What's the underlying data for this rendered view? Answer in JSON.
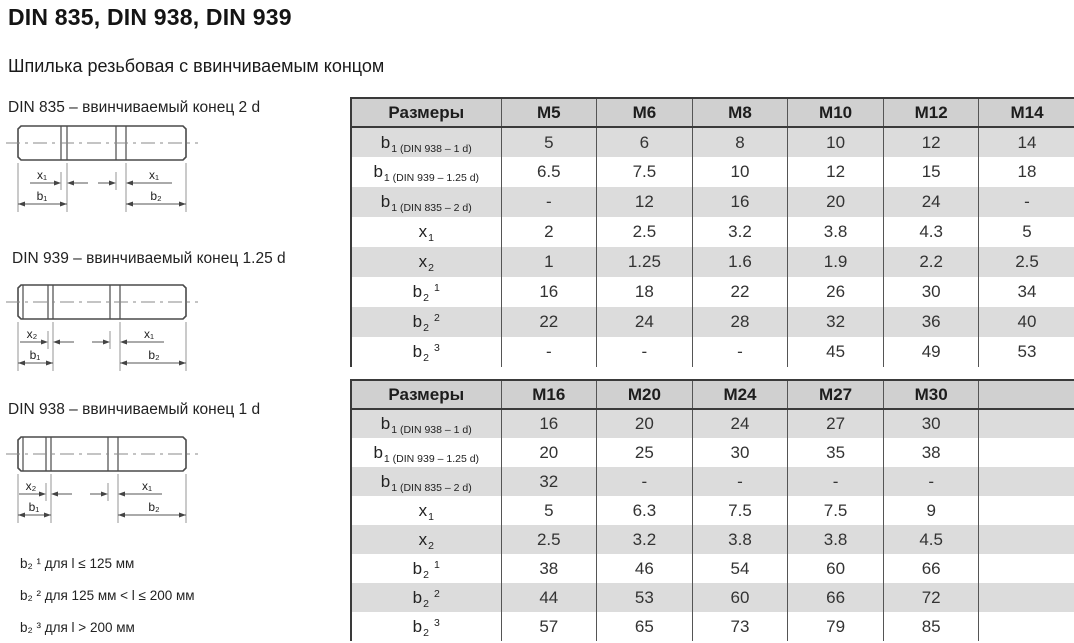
{
  "page": {
    "title": "DIN 835, DIN 938, DIN 939",
    "subtitle": "Шпилька резьбовая с ввинчиваемым концом"
  },
  "drawings": [
    {
      "caption": "DIN 835 – ввинчиваемый конец 2 d",
      "x_left": "x₁",
      "x_right": "x₁",
      "b_left": "b₁",
      "b_right": "b₂"
    },
    {
      "caption": "DIN 939 – ввинчиваемый конец 1.25 d",
      "x_left": "x₂",
      "x_right": "x₁",
      "b_left": "b₁",
      "b_right": "b₂"
    },
    {
      "caption": "DIN 938 – ввинчиваемый конец 1 d",
      "x_left": "x₂",
      "x_right": "x₁",
      "b_left": "b₁",
      "b_right": "b₂"
    }
  ],
  "footnotes": [
    "b₂ ¹ для l ≤ 125 мм",
    "b₂ ² для 125 мм < l ≤ 200 мм",
    "b₂ ³ для l > 200 мм"
  ],
  "tables": [
    {
      "header": [
        "Размеры",
        "M5",
        "M6",
        "M8",
        "M10",
        "M12",
        "M14"
      ],
      "rows": [
        {
          "base": "b",
          "sub": "1 (DIN 938 – 1 d)",
          "sup": "",
          "values": [
            "5",
            "6",
            "8",
            "10",
            "12",
            "14"
          ]
        },
        {
          "base": "b",
          "sub": "1 (DIN 939 – 1.25 d)",
          "sup": "",
          "values": [
            "6.5",
            "7.5",
            "10",
            "12",
            "15",
            "18"
          ]
        },
        {
          "base": "b",
          "sub": "1 (DIN 835 – 2 d)",
          "sup": "",
          "values": [
            "-",
            "12",
            "16",
            "20",
            "24",
            "-"
          ]
        },
        {
          "base": "x",
          "sub": "1",
          "sup": "",
          "values": [
            "2",
            "2.5",
            "3.2",
            "3.8",
            "4.3",
            "5"
          ]
        },
        {
          "base": "x",
          "sub": "2",
          "sup": "",
          "values": [
            "1",
            "1.25",
            "1.6",
            "1.9",
            "2.2",
            "2.5"
          ]
        },
        {
          "base": "b",
          "sub": "2",
          "sup": "1",
          "values": [
            "16",
            "18",
            "22",
            "26",
            "30",
            "34"
          ]
        },
        {
          "base": "b",
          "sub": "2",
          "sup": "2",
          "values": [
            "22",
            "24",
            "28",
            "32",
            "36",
            "40"
          ]
        },
        {
          "base": "b",
          "sub": "2",
          "sup": "3",
          "values": [
            "-",
            "-",
            "-",
            "45",
            "49",
            "53"
          ]
        }
      ]
    },
    {
      "header": [
        "Размеры",
        "M16",
        "M20",
        "M24",
        "M27",
        "M30",
        ""
      ],
      "rows": [
        {
          "base": "b",
          "sub": "1 (DIN 938 – 1 d)",
          "sup": "",
          "values": [
            "16",
            "20",
            "24",
            "27",
            "30",
            ""
          ]
        },
        {
          "base": "b",
          "sub": "1 (DIN 939 – 1.25 d)",
          "sup": "",
          "values": [
            "20",
            "25",
            "30",
            "35",
            "38",
            ""
          ]
        },
        {
          "base": "b",
          "sub": "1 (DIN 835 – 2 d)",
          "sup": "",
          "values": [
            "32",
            "-",
            "-",
            "-",
            "-",
            ""
          ]
        },
        {
          "base": "x",
          "sub": "1",
          "sup": "",
          "values": [
            "5",
            "6.3",
            "7.5",
            "7.5",
            "9",
            ""
          ]
        },
        {
          "base": "x",
          "sub": "2",
          "sup": "",
          "values": [
            "2.5",
            "3.2",
            "3.8",
            "3.8",
            "4.5",
            ""
          ]
        },
        {
          "base": "b",
          "sub": "2",
          "sup": "1",
          "values": [
            "38",
            "46",
            "54",
            "60",
            "66",
            ""
          ]
        },
        {
          "base": "b",
          "sub": "2",
          "sup": "2",
          "values": [
            "44",
            "53",
            "60",
            "66",
            "72",
            ""
          ]
        },
        {
          "base": "b",
          "sub": "2",
          "sup": "3",
          "values": [
            "57",
            "65",
            "73",
            "79",
            "85",
            ""
          ]
        }
      ]
    }
  ],
  "colors": {
    "header_bg": "#d0d0d0",
    "stripe_bg": "#dcdcdc",
    "border_dark": "#3a3a3a",
    "line": "#555555"
  }
}
